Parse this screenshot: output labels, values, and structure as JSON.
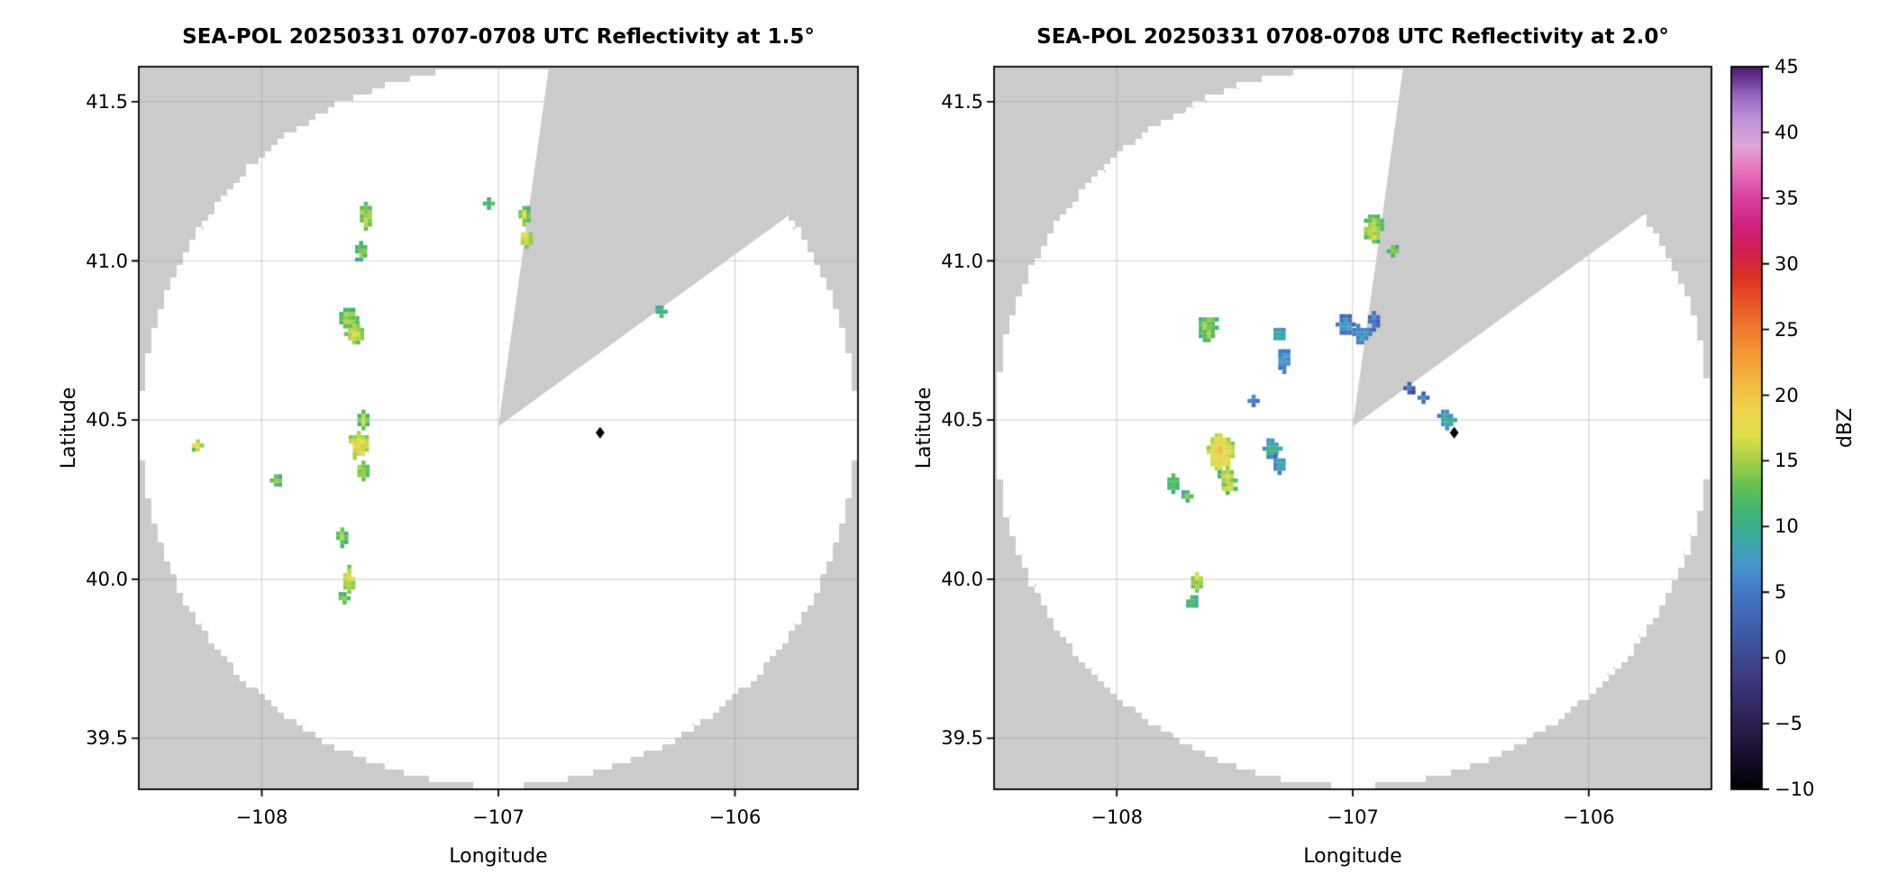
{
  "figure": {
    "background": "#ffffff",
    "outside_color": "#cbcbcb",
    "coverage_color": "#ffffff",
    "grid_color": "rgba(150,150,150,0.40)",
    "frame_color": "#000000"
  },
  "chart_data": [
    {
      "type": "heatmap",
      "title": "SEA-POL 20250331 0707-0708 UTC Reflectivity at 1.5°",
      "xlabel": "Longitude",
      "ylabel": "Latitude",
      "units": "dBZ",
      "elevation_deg": 1.5,
      "xlim": [
        -108.52,
        -105.48
      ],
      "ylim": [
        39.34,
        41.61
      ],
      "xticks": [
        -108,
        -107,
        -106
      ],
      "xtick_labels": [
        "−108",
        "−107",
        "−106"
      ],
      "yticks": [
        39.5,
        40.0,
        40.5,
        41.0,
        41.5
      ],
      "ytick_labels": [
        "39.5",
        "40.0",
        "40.5",
        "41.0",
        "41.5"
      ],
      "radar": {
        "lon": -107.0,
        "lat": 40.48,
        "range_deg_lon": 1.5,
        "range_deg_lat": 1.12
      },
      "blocked_sector_deg": [
        8,
        54
      ],
      "marker": {
        "lon": -106.57,
        "lat": 40.46,
        "shape": "diamond",
        "color": "#000000"
      },
      "echo_fields": [
        "lon",
        "lat",
        "dbz",
        "width_deg",
        "height_deg"
      ],
      "echoes": [
        [
          -107.56,
          41.14,
          13,
          0.05,
          0.07
        ],
        [
          -107.58,
          41.03,
          11,
          0.035,
          0.04
        ],
        [
          -106.89,
          41.14,
          13,
          0.05,
          0.06
        ],
        [
          -106.88,
          41.07,
          15,
          0.05,
          0.06
        ],
        [
          -107.04,
          41.18,
          10,
          0.02,
          0.02
        ],
        [
          -107.63,
          40.82,
          12,
          0.06,
          0.05
        ],
        [
          -107.61,
          40.77,
          14,
          0.07,
          0.06
        ],
        [
          -106.31,
          40.84,
          10,
          0.03,
          0.02
        ],
        [
          -107.57,
          40.5,
          12,
          0.05,
          0.05
        ],
        [
          -107.59,
          40.42,
          15,
          0.06,
          0.09
        ],
        [
          -107.57,
          40.34,
          13,
          0.05,
          0.06
        ],
        [
          -108.27,
          40.42,
          15,
          0.035,
          0.035
        ],
        [
          -107.94,
          40.31,
          11,
          0.03,
          0.025
        ],
        [
          -107.66,
          40.13,
          11,
          0.035,
          0.045
        ],
        [
          -107.63,
          40.0,
          14,
          0.045,
          0.075
        ],
        [
          -107.65,
          39.94,
          12,
          0.035,
          0.035
        ]
      ]
    },
    {
      "type": "heatmap",
      "title": "SEA-POL 20250331 0708-0708 UTC Reflectivity at 2.0°",
      "xlabel": "Longitude",
      "ylabel": "Latitude",
      "units": "dBZ",
      "elevation_deg": 2.0,
      "xlim": [
        -108.52,
        -105.48
      ],
      "ylim": [
        39.34,
        41.61
      ],
      "xticks": [
        -108,
        -107,
        -106
      ],
      "xtick_labels": [
        "−108",
        "−107",
        "−106"
      ],
      "yticks": [
        39.5,
        40.0,
        40.5,
        41.0,
        41.5
      ],
      "ytick_labels": [
        "39.5",
        "40.0",
        "40.5",
        "41.0",
        "41.5"
      ],
      "radar": {
        "lon": -107.0,
        "lat": 40.48,
        "range_deg_lon": 1.5,
        "range_deg_lat": 1.12
      },
      "blocked_sector_deg": [
        8,
        54
      ],
      "marker": {
        "lon": -106.57,
        "lat": 40.46,
        "shape": "diamond",
        "color": "#000000"
      },
      "echo_fields": [
        "lon",
        "lat",
        "dbz",
        "width_deg",
        "height_deg"
      ],
      "echoes": [
        [
          -106.91,
          41.1,
          13,
          0.07,
          0.08
        ],
        [
          -106.83,
          41.03,
          11,
          0.035,
          0.035
        ],
        [
          -107.61,
          40.79,
          12,
          0.06,
          0.07
        ],
        [
          -107.31,
          40.77,
          7,
          0.05,
          0.06
        ],
        [
          -107.29,
          40.69,
          5,
          0.04,
          0.07
        ],
        [
          -107.03,
          40.8,
          4,
          0.06,
          0.05
        ],
        [
          -106.96,
          40.77,
          5,
          0.06,
          0.06
        ],
        [
          -106.91,
          40.81,
          3,
          0.04,
          0.04
        ],
        [
          -106.76,
          40.6,
          1,
          0.04,
          0.03
        ],
        [
          -106.7,
          40.57,
          2,
          0.025,
          0.02
        ],
        [
          -106.6,
          40.5,
          6,
          0.08,
          0.06
        ],
        [
          -107.42,
          40.56,
          4,
          0.03,
          0.025
        ],
        [
          -107.56,
          40.4,
          16,
          0.09,
          0.1
        ],
        [
          -107.53,
          40.31,
          13,
          0.08,
          0.08
        ],
        [
          -107.76,
          40.3,
          11,
          0.05,
          0.04
        ],
        [
          -107.34,
          40.41,
          7,
          0.06,
          0.06
        ],
        [
          -107.31,
          40.36,
          6,
          0.04,
          0.04
        ],
        [
          -107.66,
          39.99,
          13,
          0.05,
          0.08
        ],
        [
          -107.68,
          39.93,
          11,
          0.03,
          0.03
        ],
        [
          -107.7,
          40.26,
          10,
          0.04,
          0.03
        ]
      ]
    }
  ],
  "colorbar": {
    "label": "dBZ",
    "min": -10,
    "max": 45,
    "ticks": [
      -10,
      -5,
      0,
      5,
      10,
      15,
      20,
      25,
      30,
      35,
      40,
      45
    ],
    "tick_labels": [
      "−10",
      "−5",
      "0",
      "5",
      "10",
      "15",
      "20",
      "25",
      "30",
      "35",
      "40",
      "45"
    ],
    "stops": [
      [
        -10,
        "#000000"
      ],
      [
        -7,
        "#1c1133"
      ],
      [
        -4,
        "#33265f"
      ],
      [
        -1,
        "#3d3f85"
      ],
      [
        2,
        "#3f5ca6"
      ],
      [
        5,
        "#4478c4"
      ],
      [
        7,
        "#4795cc"
      ],
      [
        9,
        "#3aaaa4"
      ],
      [
        11,
        "#3fb376"
      ],
      [
        13,
        "#62c054"
      ],
      [
        15,
        "#a5d148"
      ],
      [
        17,
        "#e0e04a"
      ],
      [
        19,
        "#eed34a"
      ],
      [
        21,
        "#f2b83e"
      ],
      [
        23,
        "#f39a36"
      ],
      [
        25,
        "#ef7a2e"
      ],
      [
        27,
        "#e85627"
      ],
      [
        29,
        "#dc3222"
      ],
      [
        31,
        "#cf1f4e"
      ],
      [
        33,
        "#cf2380"
      ],
      [
        35,
        "#da41a2"
      ],
      [
        37,
        "#e671bc"
      ],
      [
        39,
        "#e0a6d8"
      ],
      [
        41,
        "#bf94d9"
      ],
      [
        43,
        "#9260bd"
      ],
      [
        44,
        "#6b3a96"
      ],
      [
        45,
        "#471b69"
      ]
    ]
  }
}
